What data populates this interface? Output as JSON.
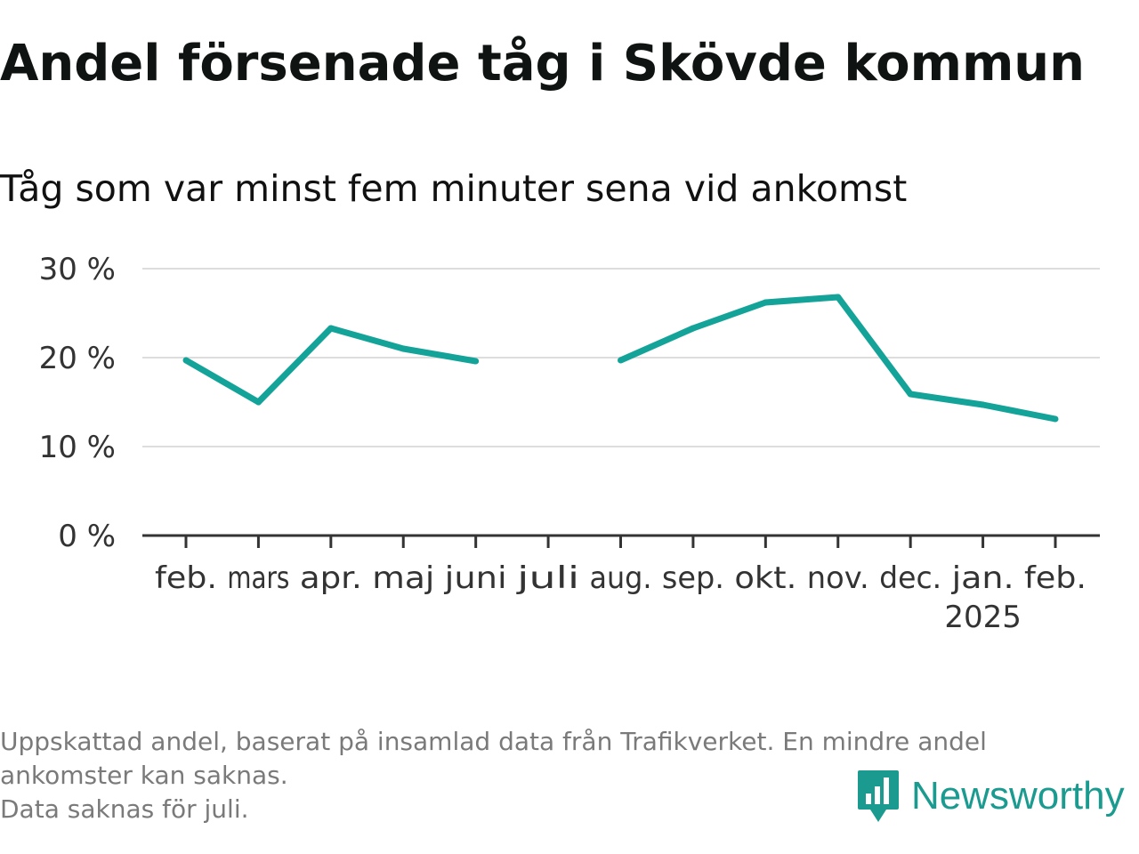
{
  "header": {
    "title": "Andel försenade tåg i Skövde kommun",
    "subtitle": "Tåg som var minst fem minuter sena vid ankomst"
  },
  "chart_data": {
    "type": "line",
    "categories": [
      "feb.",
      "mars",
      "apr.",
      "maj",
      "juni",
      "juli",
      "aug.",
      "sep.",
      "okt.",
      "nov.",
      "dec.",
      "jan.",
      "feb."
    ],
    "category_sublabels": [
      "",
      "",
      "",
      "",
      "",
      "",
      "",
      "",
      "",
      "",
      "",
      "2025",
      ""
    ],
    "series": [
      {
        "values": [
          19.7,
          15.0,
          23.3,
          21.0,
          19.6,
          null,
          19.7,
          23.3,
          26.2,
          26.8,
          15.9,
          14.7,
          13.1
        ],
        "color": "#14a398"
      }
    ],
    "ylim": [
      0,
      30
    ],
    "yticks": [
      0,
      10,
      20,
      30
    ],
    "ytick_labels": [
      "0 %",
      "10 %",
      "20 %",
      "30 %"
    ],
    "grid": true,
    "legend": "none",
    "xlabel": "",
    "ylabel": ""
  },
  "footer": {
    "note_line1": "Uppskattad andel, baserat på insamlad data från Trafikverket. En mindre andel",
    "note_line2": "ankomster kan saknas.",
    "note_line3": "Data saknas för juli."
  },
  "logo": {
    "text": "Newsworthy",
    "icon": "bar-chart-speech-icon",
    "color": "#1b9b90"
  }
}
